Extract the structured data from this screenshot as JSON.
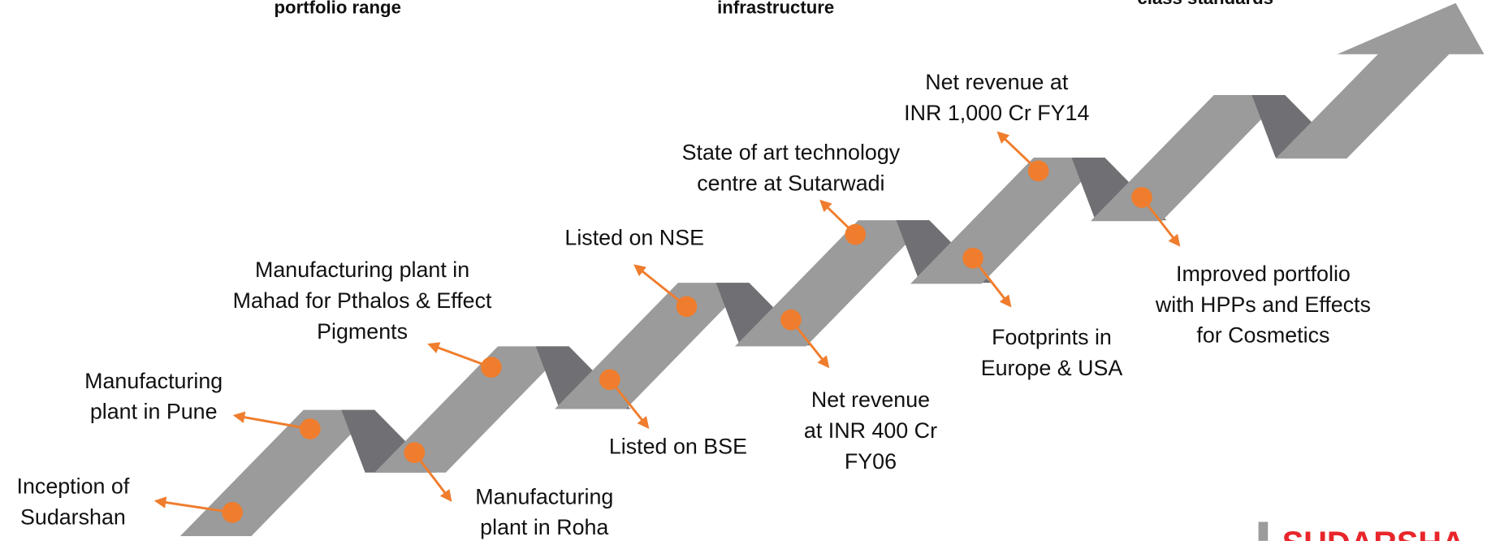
{
  "header": {
    "captions": [
      "portfolio range",
      "infrastructure",
      "class standards"
    ]
  },
  "milestones": [
    {
      "lines": [
        "Inception of",
        "Sudarshan"
      ]
    },
    {
      "lines": [
        "Manufacturing",
        "plant in Pune"
      ]
    },
    {
      "lines": [
        "Manufacturing",
        "plant in Roha"
      ]
    },
    {
      "lines": [
        "Manufacturing plant in",
        "Mahad for Pthalos & Effect",
        "Pigments"
      ]
    },
    {
      "lines": [
        "Listed on BSE"
      ]
    },
    {
      "lines": [
        "Listed on NSE"
      ]
    },
    {
      "lines": [
        "Net revenue",
        "at INR 400 Cr",
        "FY06"
      ]
    },
    {
      "lines": [
        "State of art technology",
        "centre at Sutarwadi"
      ]
    },
    {
      "lines": [
        "Footprints in",
        "Europe & USA"
      ]
    },
    {
      "lines": [
        "Net revenue at",
        "INR 1,000 Cr FY14"
      ]
    },
    {
      "lines": [
        "Improved portfolio",
        "with HPPs and Effects",
        "for Cosmetics"
      ]
    }
  ],
  "logo": "SUDARSHA"
}
